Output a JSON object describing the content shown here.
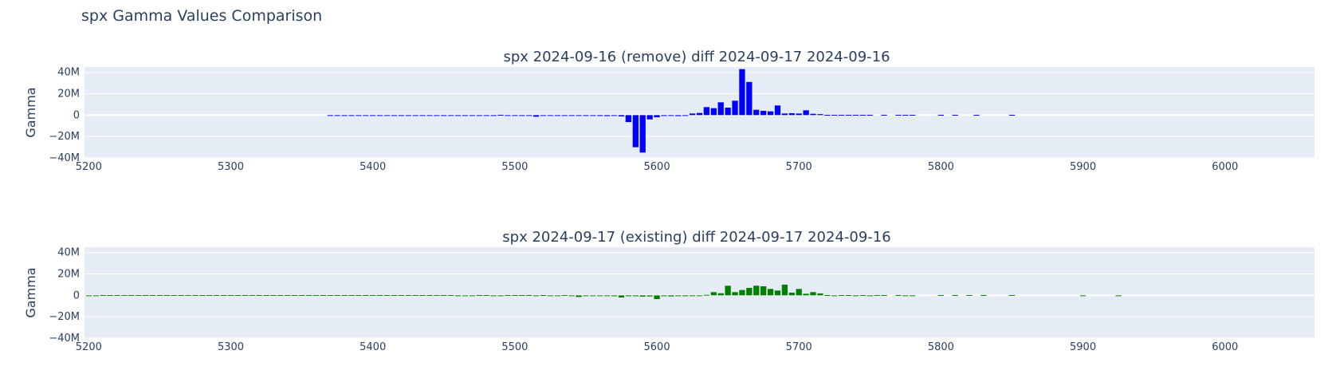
{
  "figure_title": "spx Gamma Values Comparison",
  "chart_data": [
    {
      "type": "bar",
      "title": "spx 2024-09-16 (remove) diff 2024-09-17 2024-09-16",
      "xlabel": "",
      "ylabel": "Gamma",
      "xlim": [
        5197,
        6063
      ],
      "ylim": [
        -40000000,
        45000000
      ],
      "x_ticks": [
        "5200",
        "5300",
        "5400",
        "5500",
        "5600",
        "5700",
        "5800",
        "5900",
        "6000"
      ],
      "y_ticks": [
        "40M",
        "20M",
        "0",
        "−20M",
        "−40M"
      ],
      "grid": true,
      "color": "#0000ff",
      "series": [
        {
          "x": [
            5370,
            5375,
            5380,
            5385,
            5390,
            5395,
            5400,
            5405,
            5410,
            5415,
            5420,
            5425,
            5430,
            5435,
            5440,
            5445,
            5450,
            5455,
            5460,
            5465,
            5470,
            5475,
            5480,
            5485,
            5490,
            5495,
            5500,
            5505,
            5510,
            5515,
            5520,
            5525,
            5530,
            5535,
            5540,
            5545,
            5550,
            5555,
            5560,
            5565,
            5570,
            5575,
            5580,
            5585,
            5590,
            5595,
            5600,
            5605,
            5610,
            5615,
            5620,
            5625,
            5630,
            5635,
            5640,
            5645,
            5650,
            5655,
            5660,
            5665,
            5670,
            5675,
            5680,
            5685,
            5690,
            5695,
            5700,
            5705,
            5710,
            5715,
            5720,
            5725,
            5730,
            5735,
            5740,
            5745,
            5750,
            5760,
            5770,
            5775,
            5780,
            5800,
            5810,
            5825,
            5850
          ],
          "y": [
            -300000,
            -300000,
            -200000,
            -300000,
            -400000,
            -300000,
            -300000,
            -200000,
            -300000,
            -300000,
            -300000,
            -200000,
            -300000,
            -300000,
            -300000,
            -300000,
            -200000,
            -300000,
            -300000,
            -300000,
            -200000,
            -300000,
            -300000,
            -200000,
            300000,
            -300000,
            -500000,
            -200000,
            -700000,
            -1500000,
            -300000,
            -300000,
            -200000,
            -300000,
            -300000,
            -400000,
            -400000,
            -500000,
            -800000,
            -900000,
            -500000,
            -1200000,
            -6500000,
            -30000000,
            -35000000,
            -4000000,
            -2000000,
            -800000,
            -500000,
            -900000,
            -700000,
            1500000,
            2000000,
            7500000,
            6500000,
            12000000,
            7000000,
            13500000,
            43000000,
            31000000,
            5000000,
            4000000,
            3500000,
            9000000,
            1500000,
            1800000,
            1500000,
            4500000,
            1200000,
            900000,
            300000,
            300000,
            300000,
            300000,
            300000,
            300000,
            300000,
            300000,
            300000,
            300000,
            300000,
            300000,
            300000,
            300000,
            300000
          ]
        }
      ]
    },
    {
      "type": "bar",
      "title": "spx 2024-09-17 (existing) diff 2024-09-17 2024-09-16",
      "xlabel": "",
      "ylabel": "Gamma",
      "xlim": [
        5197,
        6063
      ],
      "ylim": [
        -40000000,
        45000000
      ],
      "x_ticks": [
        "5200",
        "5300",
        "5400",
        "5500",
        "5600",
        "5700",
        "5800",
        "5900",
        "6000"
      ],
      "y_ticks": [
        "40M",
        "20M",
        "0",
        "−20M",
        "−40M"
      ],
      "grid": true,
      "color": "#008000",
      "series": [
        {
          "x": [
            5200,
            5205,
            5210,
            5215,
            5220,
            5225,
            5230,
            5235,
            5240,
            5245,
            5250,
            5255,
            5260,
            5265,
            5270,
            5275,
            5280,
            5285,
            5290,
            5295,
            5300,
            5305,
            5310,
            5315,
            5320,
            5325,
            5330,
            5335,
            5340,
            5345,
            5350,
            5355,
            5360,
            5365,
            5370,
            5375,
            5380,
            5385,
            5390,
            5395,
            5400,
            5405,
            5410,
            5415,
            5420,
            5425,
            5430,
            5435,
            5440,
            5445,
            5450,
            5455,
            5460,
            5465,
            5470,
            5475,
            5480,
            5485,
            5490,
            5495,
            5500,
            5505,
            5510,
            5515,
            5520,
            5525,
            5530,
            5535,
            5540,
            5545,
            5550,
            5555,
            5560,
            5565,
            5570,
            5575,
            5580,
            5585,
            5590,
            5595,
            5600,
            5605,
            5610,
            5615,
            5620,
            5625,
            5630,
            5635,
            5640,
            5645,
            5650,
            5655,
            5660,
            5665,
            5670,
            5675,
            5680,
            5685,
            5690,
            5695,
            5700,
            5705,
            5710,
            5715,
            5720,
            5725,
            5730,
            5735,
            5740,
            5745,
            5750,
            5755,
            5760,
            5770,
            5775,
            5780,
            5800,
            5810,
            5820,
            5830,
            5850,
            5900,
            5925
          ],
          "y": [
            -300000,
            -300000,
            300000,
            300000,
            300000,
            300000,
            300000,
            300000,
            300000,
            300000,
            300000,
            300000,
            300000,
            300000,
            300000,
            300000,
            300000,
            300000,
            300000,
            300000,
            300000,
            300000,
            300000,
            300000,
            300000,
            300000,
            300000,
            300000,
            300000,
            300000,
            300000,
            300000,
            300000,
            300000,
            300000,
            300000,
            300000,
            300000,
            300000,
            300000,
            300000,
            300000,
            300000,
            300000,
            300000,
            300000,
            300000,
            300000,
            300000,
            300000,
            300000,
            300000,
            -300000,
            -300000,
            -300000,
            300000,
            300000,
            -300000,
            -300000,
            300000,
            300000,
            300000,
            300000,
            -300000,
            300000,
            -300000,
            -300000,
            300000,
            -300000,
            -1500000,
            -600000,
            -300000,
            -300000,
            -300000,
            -800000,
            -2000000,
            -800000,
            -800000,
            -1200000,
            -1000000,
            -3500000,
            -800000,
            -1000000,
            -700000,
            -800000,
            -500000,
            -300000,
            500000,
            3000000,
            2000000,
            9000000,
            3000000,
            5000000,
            7000000,
            9000000,
            8500000,
            6000000,
            4500000,
            10000000,
            2500000,
            6000000,
            1500000,
            3000000,
            1800000,
            300000,
            -300000,
            300000,
            300000,
            -300000,
            300000,
            -300000,
            300000,
            300000,
            300000,
            -300000,
            -300000,
            300000,
            300000,
            300000,
            300000,
            300000,
            -300000,
            -300000
          ]
        }
      ]
    }
  ]
}
